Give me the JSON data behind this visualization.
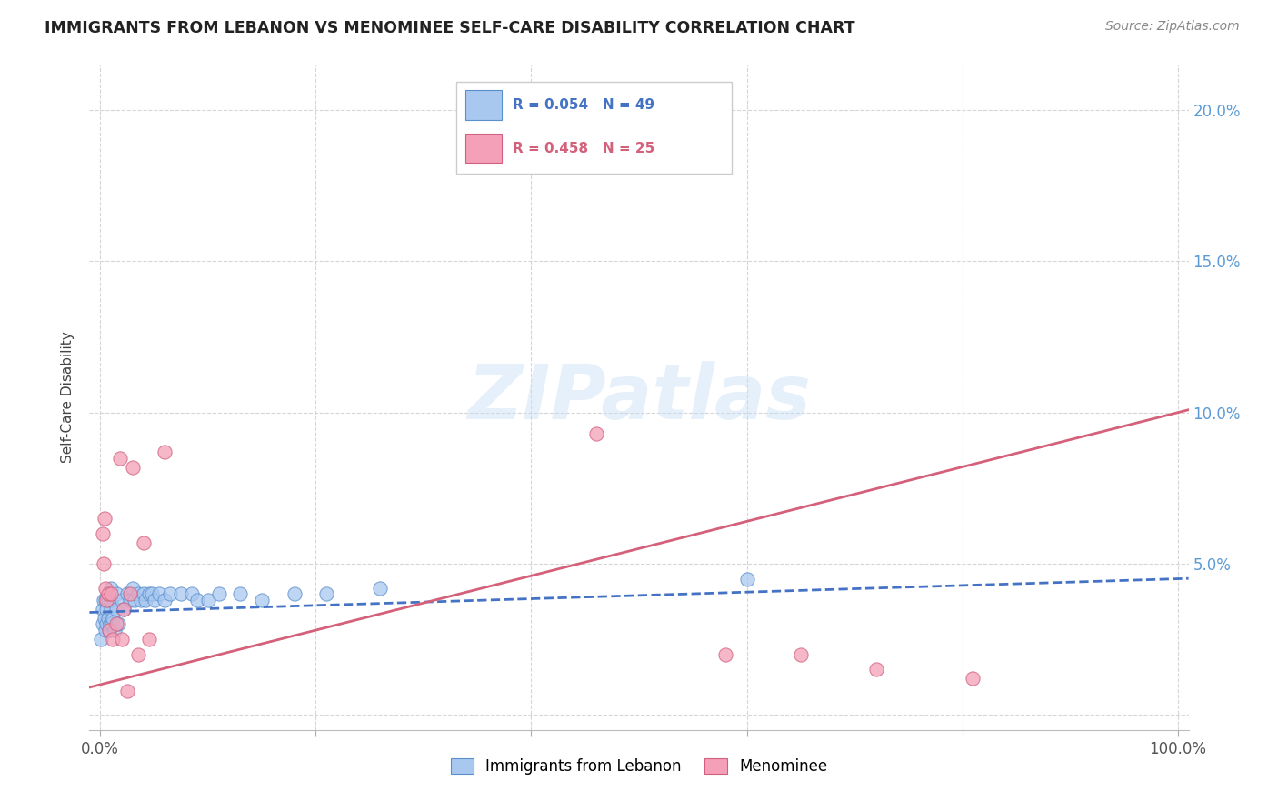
{
  "title": "IMMIGRANTS FROM LEBANON VS MENOMINEE SELF-CARE DISABILITY CORRELATION CHART",
  "source": "Source: ZipAtlas.com",
  "ylabel": "Self-Care Disability",
  "yticks": [
    0.0,
    0.05,
    0.1,
    0.15,
    0.2
  ],
  "ytick_labels": [
    "",
    "5.0%",
    "10.0%",
    "15.0%",
    "20.0%"
  ],
  "xlim": [
    -0.01,
    1.01
  ],
  "ylim": [
    -0.005,
    0.215
  ],
  "blue_R": 0.054,
  "blue_N": 49,
  "pink_R": 0.458,
  "pink_N": 25,
  "blue_color": "#A8C8F0",
  "pink_color": "#F4A0B8",
  "blue_edge_color": "#5B8FCC",
  "pink_edge_color": "#D06080",
  "blue_line_color": "#4472C4",
  "pink_line_color": "#D4607A",
  "watermark_text": "ZIPatlas",
  "blue_scatter_x": [
    0.001,
    0.002,
    0.002,
    0.003,
    0.004,
    0.005,
    0.005,
    0.006,
    0.006,
    0.007,
    0.007,
    0.008,
    0.009,
    0.01,
    0.01,
    0.01,
    0.011,
    0.012,
    0.013,
    0.015,
    0.015,
    0.017,
    0.02,
    0.022,
    0.025,
    0.028,
    0.03,
    0.032,
    0.035,
    0.038,
    0.04,
    0.042,
    0.045,
    0.048,
    0.05,
    0.055,
    0.06,
    0.065,
    0.075,
    0.085,
    0.09,
    0.1,
    0.11,
    0.13,
    0.15,
    0.18,
    0.21,
    0.26,
    0.6
  ],
  "blue_scatter_y": [
    0.025,
    0.03,
    0.035,
    0.038,
    0.032,
    0.028,
    0.038,
    0.03,
    0.035,
    0.032,
    0.038,
    0.028,
    0.03,
    0.035,
    0.038,
    0.042,
    0.03,
    0.032,
    0.028,
    0.035,
    0.04,
    0.03,
    0.038,
    0.035,
    0.04,
    0.038,
    0.042,
    0.038,
    0.04,
    0.038,
    0.04,
    0.038,
    0.04,
    0.04,
    0.038,
    0.04,
    0.038,
    0.04,
    0.04,
    0.04,
    0.038,
    0.038,
    0.04,
    0.04,
    0.038,
    0.04,
    0.04,
    0.042,
    0.045
  ],
  "pink_scatter_x": [
    0.002,
    0.003,
    0.004,
    0.005,
    0.006,
    0.007,
    0.008,
    0.01,
    0.012,
    0.015,
    0.018,
    0.02,
    0.022,
    0.025,
    0.028,
    0.03,
    0.035,
    0.04,
    0.045,
    0.06,
    0.46,
    0.58,
    0.65,
    0.72,
    0.81
  ],
  "pink_scatter_y": [
    0.06,
    0.05,
    0.065,
    0.042,
    0.038,
    0.04,
    0.028,
    0.04,
    0.025,
    0.03,
    0.085,
    0.025,
    0.035,
    0.008,
    0.04,
    0.082,
    0.02,
    0.057,
    0.025,
    0.087,
    0.093,
    0.02,
    0.02,
    0.015,
    0.012
  ],
  "blue_trend_x0": 0.0,
  "blue_trend_y0": 0.034,
  "blue_trend_x1": 1.0,
  "blue_trend_y1": 0.045,
  "pink_trend_x0": 0.0,
  "pink_trend_y0": 0.01,
  "pink_trend_x1": 1.0,
  "pink_trend_y1": 0.1
}
